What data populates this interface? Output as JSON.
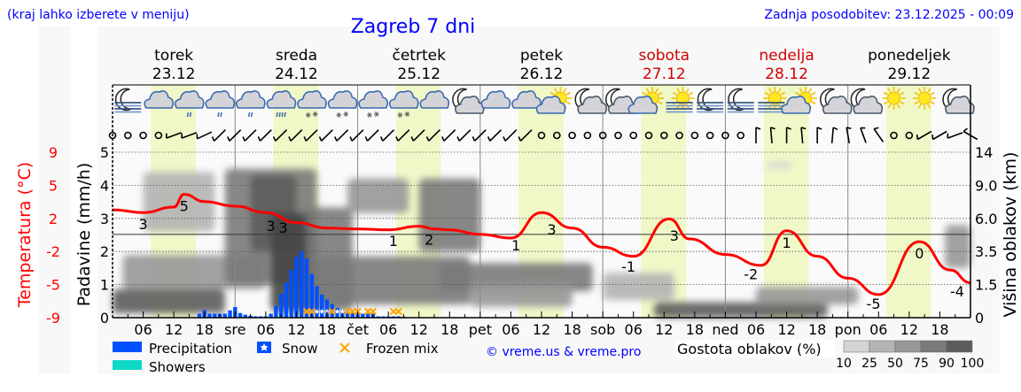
{
  "header": {
    "hint": "(kraj lahko izberete v meniju)",
    "title": "Zagreb 7 dni",
    "updated": "Zadnja posodobitev: 23.12.2025 - 00:09"
  },
  "days": [
    {
      "name": "torek",
      "date": "23.12",
      "weekend": false
    },
    {
      "name": "sreda",
      "date": "24.12",
      "weekend": false
    },
    {
      "name": "četrtek",
      "date": "25.12",
      "weekend": false
    },
    {
      "name": "petek",
      "date": "26.12",
      "weekend": false
    },
    {
      "name": "sobota",
      "date": "27.12",
      "weekend": true
    },
    {
      "name": "nedelja",
      "date": "28.12",
      "weekend": true
    },
    {
      "name": "ponedeljek",
      "date": "29.12",
      "weekend": false
    }
  ],
  "colors": {
    "title": "#0000ff",
    "temperature": "#ff0000",
    "weekend": "#d00000",
    "precipitation": "#0050ff",
    "showers": "#10d8c8",
    "frozen_mix": "#ffa500",
    "daylight": "#f0f8c8"
  },
  "icons": [
    "moon-fog",
    "cloudy",
    "cloud-rain-light",
    "cloud-rain-light",
    "cloud-rain-light",
    "cloud-rain",
    "cloud-sleet",
    "cloud-snow",
    "cloud-snow",
    "cloud-snow",
    "cloudy",
    "moon-cloud",
    "cloudy",
    "cloudy",
    "sun-cloud",
    "moon-cloud",
    "moon-cloud",
    "sun-cloud",
    "sun-fog",
    "moon-fog",
    "moon-fog",
    "sun-fog",
    "sun-cloud",
    "moon-cloud",
    "moon-cloud",
    "sun",
    "sun",
    "moon-cloud"
  ],
  "wind": [
    "calm",
    "calm",
    "calm",
    "calm",
    250,
    250,
    245,
    225,
    225,
    225,
    225,
    225,
    225,
    225,
    225,
    225,
    225,
    225,
    225,
    225,
    225,
    225,
    225,
    225,
    225,
    225,
    225,
    225,
    "calm",
    "calm",
    "calm",
    "calm",
    "calm",
    "calm",
    "calm",
    "calm",
    "calm",
    "calm",
    "calm",
    "calm",
    "calm",
    "calm",
    0,
    355,
    0,
    355,
    0,
    5,
    350,
    340,
    325,
    "calm",
    "calm",
    240,
    240,
    250,
    300
  ],
  "chart_data": {
    "type": "line",
    "title": "Zagreb 7 dni",
    "x_unit": "hours from 23.12 00:00 (3-hour steps for wind, 1-hour for precipitation)",
    "xticks": [
      "06",
      "12",
      "18",
      "sre",
      "06",
      "12",
      "18",
      "čet",
      "06",
      "12",
      "18",
      "pet",
      "06",
      "12",
      "18",
      "sob",
      "06",
      "12",
      "18",
      "ned",
      "06",
      "12",
      "18",
      "pon",
      "06",
      "12",
      "18"
    ],
    "daylight_hours": [
      7.5,
      16.3
    ],
    "axes": {
      "temperature": {
        "label": "Temperatura (°C)",
        "ticks": [
          "9",
          "5",
          "2",
          "-2",
          "-5",
          "-9"
        ]
      },
      "precipitation": {
        "label": "Padavine (mm/h)",
        "ticks": [
          "0",
          "1",
          "2",
          "3",
          "4",
          "5"
        ],
        "ylim": [
          0,
          5
        ]
      },
      "cloud_height": {
        "label": "Višina oblakov (km)",
        "ticks": [
          "0",
          "1.5",
          "3.5",
          "6.0",
          "9.0",
          "14"
        ]
      }
    },
    "temperature": {
      "hours": [
        0,
        6,
        12,
        14,
        18,
        24,
        30,
        36,
        42,
        48,
        54,
        60,
        63,
        66,
        72,
        78,
        84,
        90,
        96,
        102,
        109,
        113,
        120,
        127,
        132,
        138,
        144,
        150,
        158,
        164,
        168
      ],
      "values": [
        3.0,
        2.7,
        3.3,
        4.7,
        3.9,
        3.4,
        2.7,
        1.6,
        1.0,
        0.9,
        0.8,
        1.2,
        0.9,
        0.8,
        0.3,
        -0.1,
        2.7,
        1.0,
        -1.1,
        -2.1,
        2.0,
        -0.2,
        -1.9,
        -3.1,
        0.7,
        -2.1,
        -4.5,
        -6.3,
        -0.5,
        -3.6,
        -5.0
      ]
    },
    "temperature_labels": [
      {
        "hour": 6,
        "text": "3"
      },
      {
        "hour": 14,
        "text": "5"
      },
      {
        "hour": 31,
        "text": "3"
      },
      {
        "hour": 32,
        "text": "3"
      },
      {
        "hour": 55,
        "text": "1"
      },
      {
        "hour": 62,
        "text": "2"
      },
      {
        "hour": 79,
        "text": "1"
      },
      {
        "hour": 86,
        "text": "3"
      },
      {
        "hour": 101,
        "text": "-1"
      },
      {
        "hour": 110,
        "text": "3"
      },
      {
        "hour": 125,
        "text": "-2"
      },
      {
        "hour": 132,
        "text": "1"
      },
      {
        "hour": 149,
        "text": "-5"
      },
      {
        "hour": 158,
        "text": "0"
      },
      {
        "hour": 167,
        "text": "-4"
      }
    ],
    "precipitation": {
      "start_hour": 17,
      "values": [
        0.12,
        0.23,
        0.12,
        0.12,
        0.12,
        0.12,
        0.22,
        0.32,
        0.14,
        0.09,
        0.06,
        0.04,
        0.04,
        0.04,
        0.12,
        0.36,
        0.72,
        1.06,
        1.44,
        1.84,
        2.0,
        1.79,
        1.32,
        0.95,
        0.7,
        0.55,
        0.41,
        0.3,
        0.23,
        0.18,
        0.16,
        0.14,
        0.12,
        0.12,
        0.12,
        0.04,
        0.04,
        0.04,
        0.04,
        0.04,
        0.03
      ]
    },
    "snow_hours": [
      40,
      41,
      42,
      44,
      45
    ],
    "frozen_mix_hours": [
      38,
      39,
      43,
      46,
      47,
      48,
      50,
      51,
      55,
      56
    ],
    "cloud_layers": [
      {
        "h": [
          0,
          22
        ],
        "km": [
          0.2,
          1.3
        ],
        "density": 90
      },
      {
        "h": [
          2,
          30
        ],
        "km": [
          1.3,
          3.3
        ],
        "density": 50
      },
      {
        "h": [
          6,
          20
        ],
        "km": [
          5.0,
          11.0
        ],
        "density": 25
      },
      {
        "h": [
          22,
          40
        ],
        "km": [
          1.5,
          11.5
        ],
        "density": 75
      },
      {
        "h": [
          27,
          36
        ],
        "km": [
          3.5,
          10.5
        ],
        "density": 90
      },
      {
        "h": [
          31,
          40
        ],
        "km": [
          0.3,
          6.5
        ],
        "density": 100
      },
      {
        "h": [
          38,
          47
        ],
        "km": [
          0.3,
          7.0
        ],
        "density": 75
      },
      {
        "h": [
          40,
          70
        ],
        "km": [
          0.6,
          3.2
        ],
        "density": 75
      },
      {
        "h": [
          46,
          58
        ],
        "km": [
          6.5,
          10.0
        ],
        "density": 50
      },
      {
        "h": [
          60,
          72
        ],
        "km": [
          3.5,
          10.0
        ],
        "density": 75
      },
      {
        "h": [
          64,
          94
        ],
        "km": [
          1.2,
          2.8
        ],
        "density": 75
      },
      {
        "h": [
          70,
          90
        ],
        "km": [
          0.5,
          1.6
        ],
        "density": 50
      },
      {
        "h": [
          96,
          110
        ],
        "km": [
          0.8,
          2.2
        ],
        "density": 25
      },
      {
        "h": [
          106,
          140
        ],
        "km": [
          0.0,
          0.7
        ],
        "density": 90
      },
      {
        "h": [
          126,
          146
        ],
        "km": [
          0.6,
          1.4
        ],
        "density": 50
      },
      {
        "h": [
          128,
          133
        ],
        "km": [
          11.5,
          12.5
        ],
        "density": 10
      },
      {
        "h": [
          163,
          168
        ],
        "km": [
          2.5,
          5.5
        ],
        "density": 50
      }
    ]
  },
  "legend": {
    "precipitation": "Precipitation",
    "snow": "Snow",
    "frozen_mix": "Frozen mix",
    "showers": "Showers",
    "copyright": "© vreme.us & vreme.pro",
    "cloud_density": "Gostota oblakov (%)",
    "density_ticks": [
      "10",
      "25",
      "50",
      "75",
      "90",
      "100"
    ],
    "density_colors": [
      "#d4d4d4",
      "#b4b4b4",
      "#979797",
      "#7a7a7a",
      "#5c5c5c"
    ]
  }
}
